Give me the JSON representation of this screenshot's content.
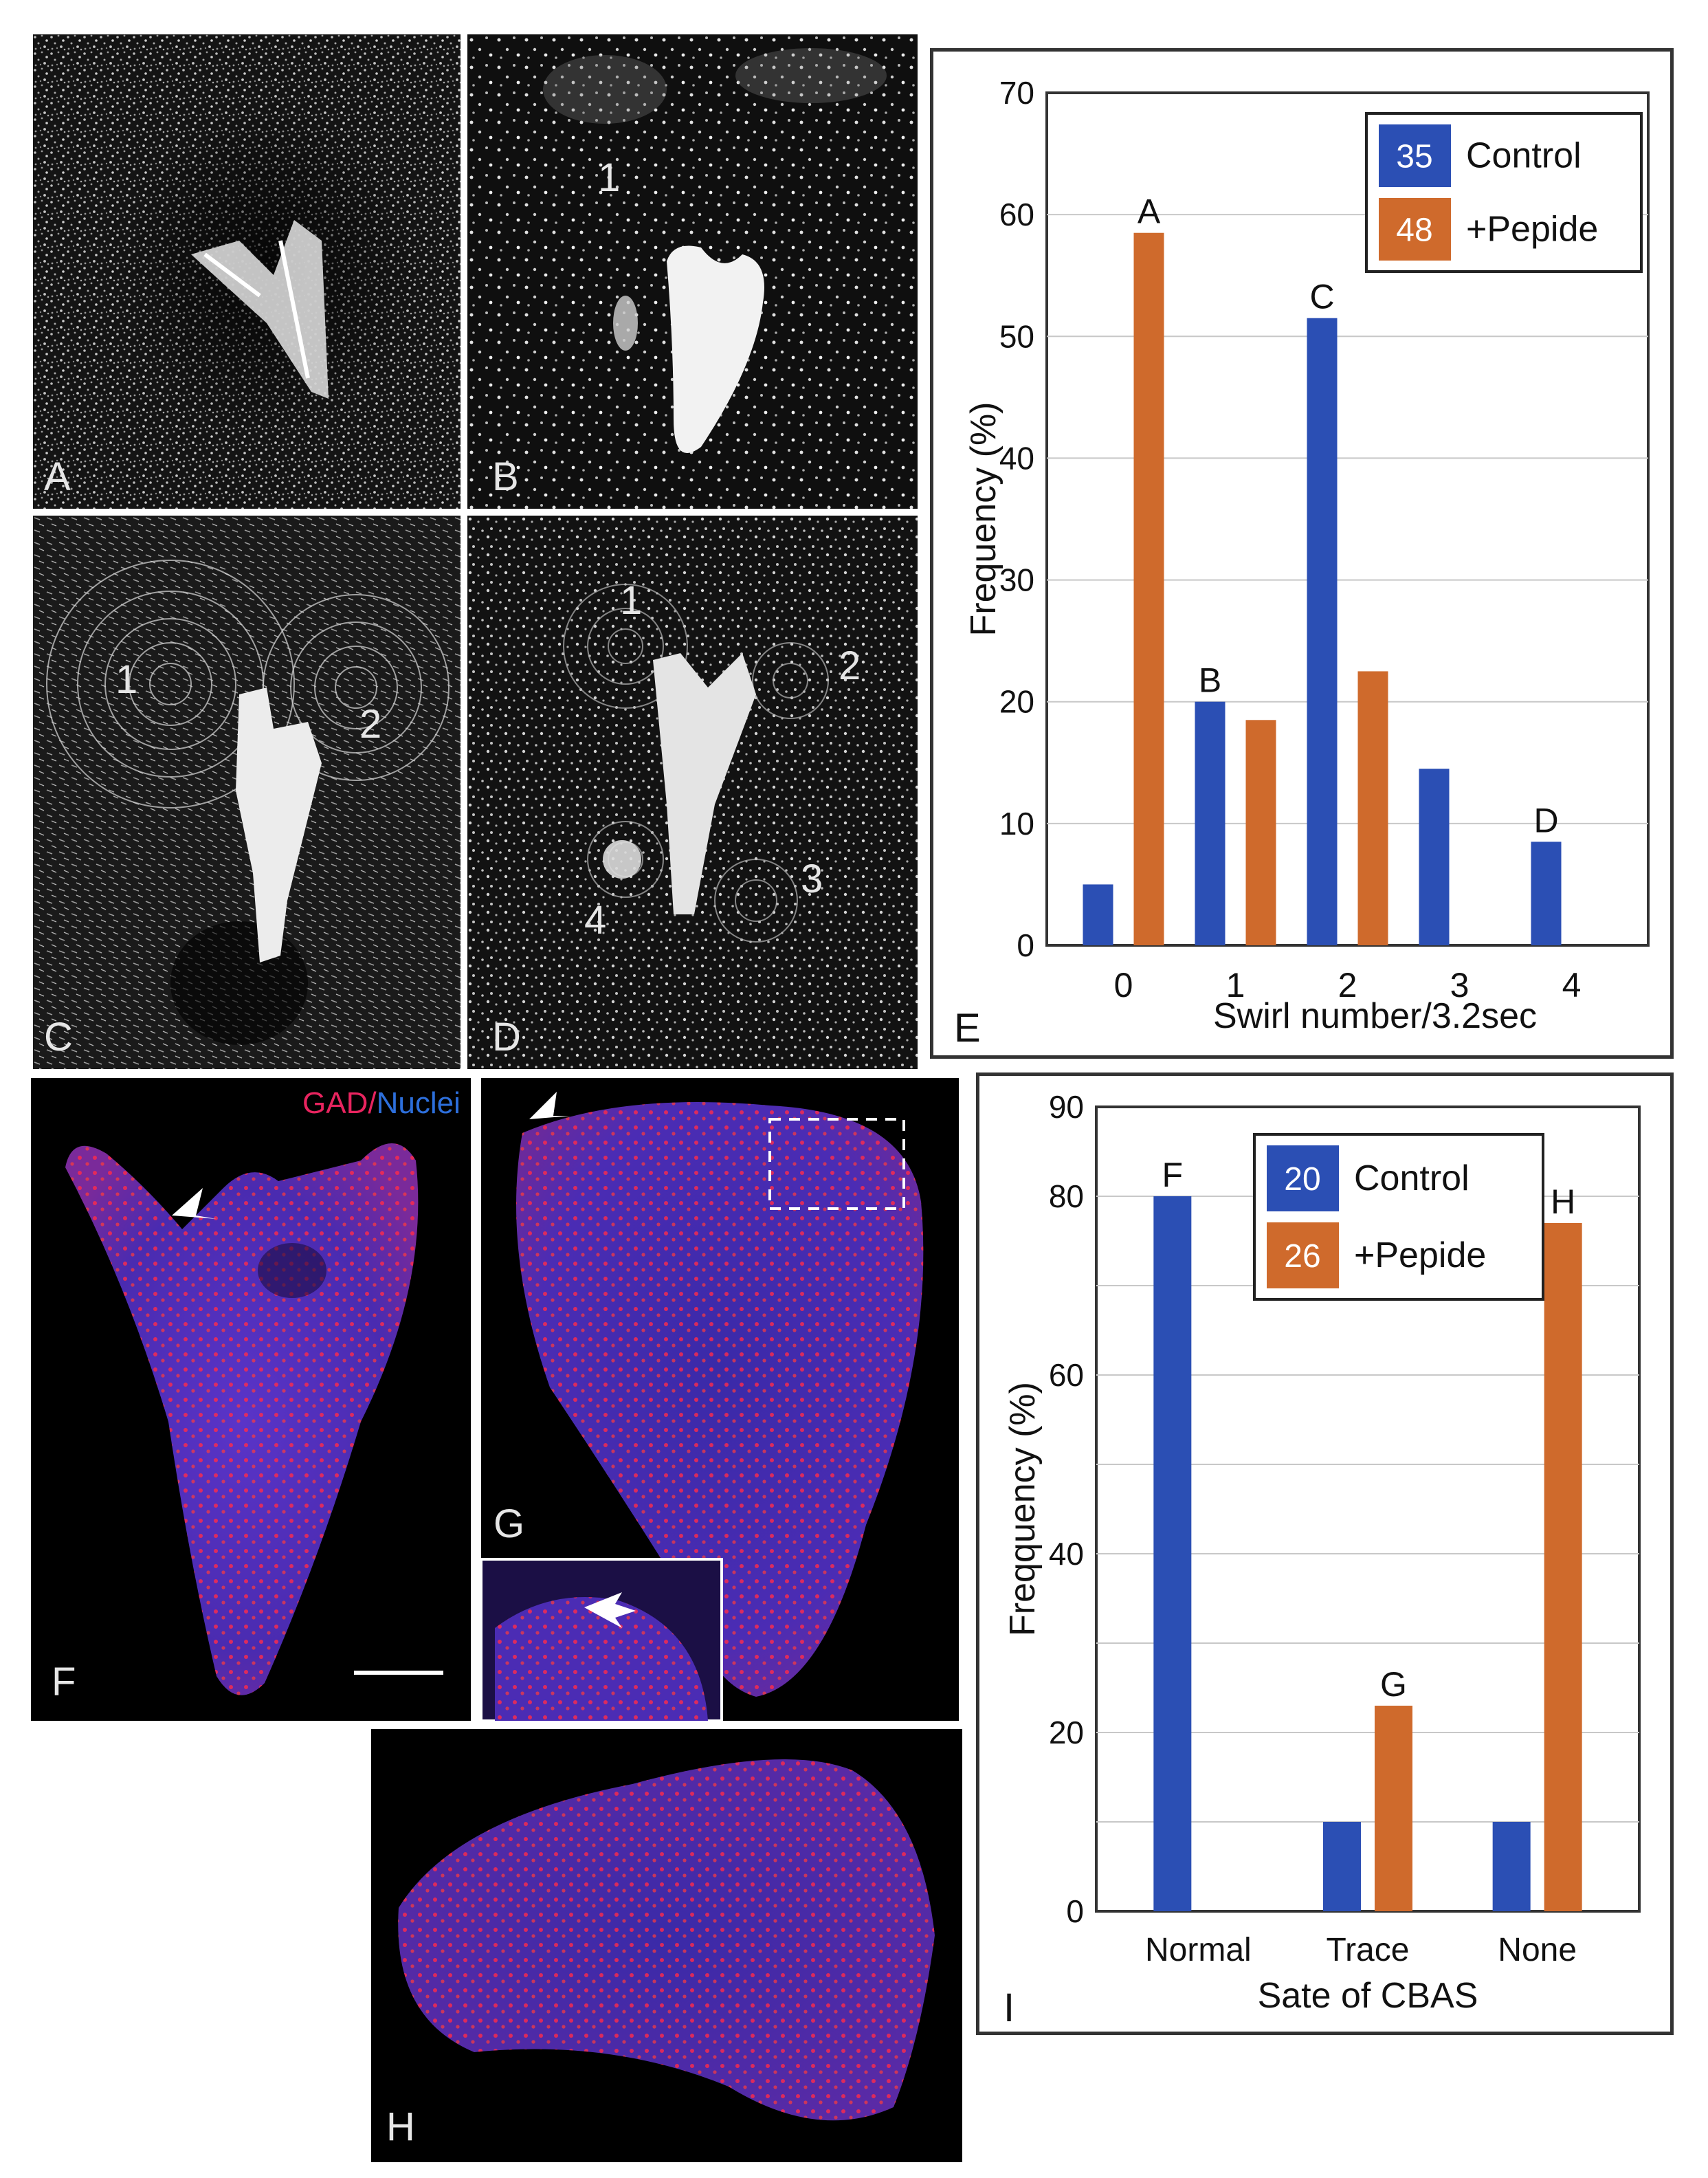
{
  "panels": {
    "A": {
      "label": "A"
    },
    "B": {
      "label": "B",
      "marks": [
        "1"
      ]
    },
    "C": {
      "label": "C",
      "marks": [
        "1",
        "2"
      ]
    },
    "D": {
      "label": "D",
      "marks": [
        "1",
        "2",
        "3",
        "4"
      ]
    },
    "F": {
      "label": "F",
      "gad": "GAD",
      "slash": "/",
      "nuclei": "Nuclei"
    },
    "G": {
      "label": "G"
    },
    "H": {
      "label": "H"
    }
  },
  "colors": {
    "control": "#2b4fb4",
    "peptide": "#cf6a2c",
    "gad": "#e8245f",
    "nuclei": "#2d6fdc"
  },
  "chart_data": [
    {
      "panel": "E",
      "type": "bar",
      "categories": [
        "0",
        "1",
        "2",
        "3",
        "4"
      ],
      "series": [
        {
          "name": "Control",
          "n": "35",
          "values": [
            5,
            20,
            51.5,
            14.5,
            8.5
          ]
        },
        {
          "name": "+Pepide",
          "n": "48",
          "values": [
            58.5,
            18.5,
            22.5,
            0,
            0
          ]
        }
      ],
      "bar_letters": [
        {
          "text": "A",
          "category": "0",
          "series": "+Pepide"
        },
        {
          "text": "B",
          "category": "1",
          "series": "Control"
        },
        {
          "text": "C",
          "category": "2",
          "series": "Control"
        },
        {
          "text": "D",
          "category": "4",
          "series": "Control"
        }
      ],
      "xlabel": "Swirl number/3.2sec",
      "ylabel": "Frequency (%)",
      "ylim": [
        0,
        70
      ],
      "yticks": [
        0,
        10,
        20,
        30,
        40,
        50,
        60,
        70
      ],
      "grid": true,
      "legend": "top-right"
    },
    {
      "panel": "I",
      "type": "bar",
      "categories": [
        "Normal",
        "Trace",
        "None"
      ],
      "series": [
        {
          "name": "Control",
          "n": "20",
          "values": [
            80,
            10,
            10
          ]
        },
        {
          "name": "+Pepide",
          "n": "26",
          "values": [
            0,
            23,
            77
          ]
        }
      ],
      "bar_letters": [
        {
          "text": "F",
          "category": "Normal",
          "series": "Control"
        },
        {
          "text": "G",
          "category": "Trace",
          "series": "+Pepide"
        },
        {
          "text": "H",
          "category": "None",
          "series": "+Pepide"
        }
      ],
      "xlabel": "Sate of CBAS",
      "ylabel": "Freqquency (%)",
      "ylim": [
        0,
        90
      ],
      "yticks": [
        0,
        20,
        40,
        60,
        80,
        90
      ],
      "grid": true,
      "legend": "top-right"
    }
  ]
}
